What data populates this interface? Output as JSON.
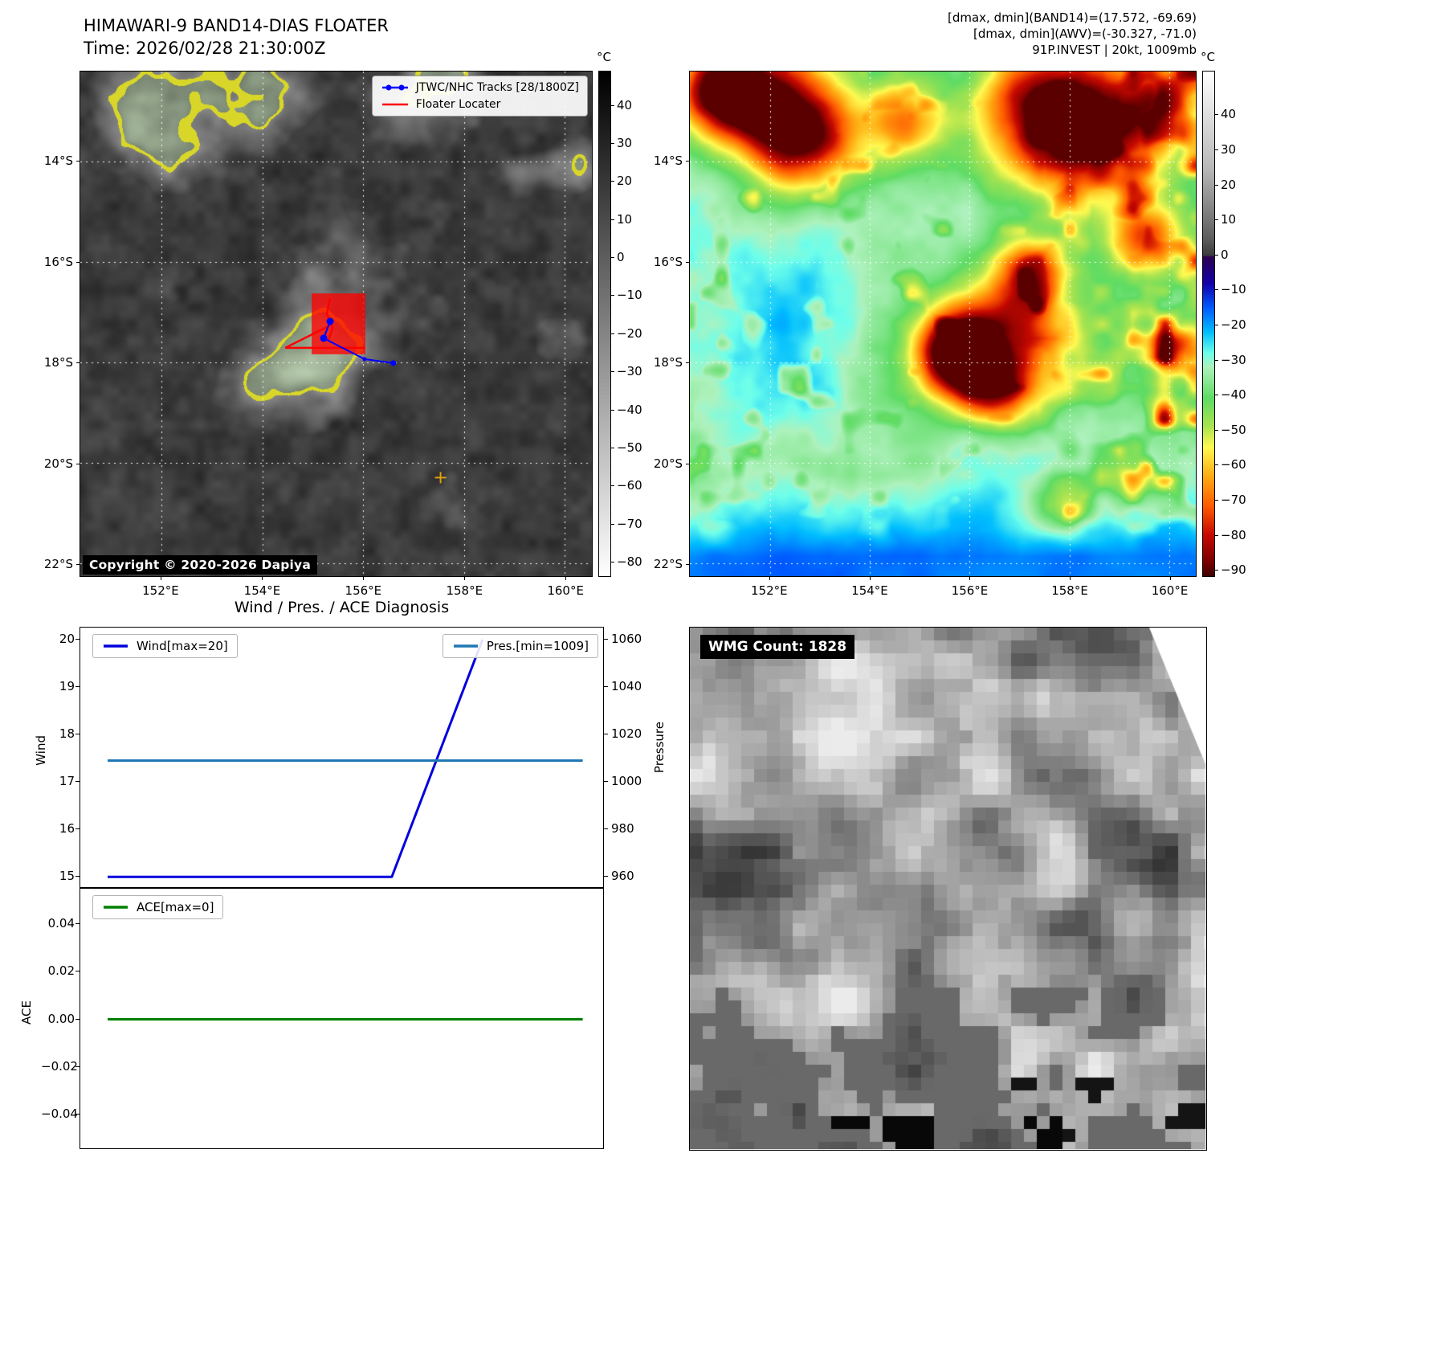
{
  "panel_band14": {
    "title": "HIMAWARI-9 BAND14-DIAS FLOATER",
    "time_line": "Time: 2026/02/28 21:30:00Z",
    "legend": {
      "track_label": "JTWC/NHC Tracks [28/1800Z]",
      "track_color": "#0000ff",
      "floater_label": "Floater Locater",
      "floater_color": "#ff0000"
    },
    "copyright": "Copyright © 2020-2026 Dapiya",
    "lat_ticks": [
      "14°S",
      "16°S",
      "18°S",
      "20°S",
      "22°S"
    ],
    "lon_ticks": [
      "152°E",
      "154°E",
      "156°E",
      "158°E",
      "160°E"
    ],
    "colorbar": {
      "unit": "°C",
      "ticks": [
        40,
        30,
        20,
        10,
        0,
        -10,
        -20,
        -30,
        -40,
        -50,
        -60,
        -70,
        -80
      ],
      "vmax": 49,
      "vmin": -84
    }
  },
  "panel_awv": {
    "header_lines": [
      "[dmax, dmin](BAND14)=(17.572, -69.69)",
      "[dmax, dmin](AWV)=(-30.327, -71.0)",
      "91P.INVEST | 20kt, 1009mb"
    ],
    "lat_ticks": [
      "14°S",
      "16°S",
      "18°S",
      "20°S",
      "22°S"
    ],
    "lon_ticks": [
      "152°E",
      "154°E",
      "156°E",
      "158°E",
      "160°E"
    ],
    "colorbar": {
      "unit": "°C",
      "ticks": [
        40,
        30,
        20,
        10,
        0,
        -10,
        -20,
        -30,
        -40,
        -50,
        -60,
        -70,
        -80,
        -90
      ],
      "vmax": 52.5,
      "vmin": -92
    }
  },
  "wmg_panel": {
    "count_label": "WMG Count: 1828"
  },
  "chart_data": [
    {
      "type": "line",
      "name": "wind_pressure",
      "title": "Wind / Pres. / ACE Diagnosis",
      "legend_position": [
        "upper left",
        "upper right"
      ],
      "grid": false,
      "series": [
        {
          "name": "Wind[max=20]",
          "color": "#0000dd",
          "axis": "left",
          "x_frac": [
            0.052,
            0.594,
            0.767
          ],
          "y": [
            15,
            15,
            20
          ]
        },
        {
          "name": "Pres.[min=1009]",
          "color": "#1f77b4",
          "axis": "right",
          "x_frac": [
            0.052,
            0.958
          ],
          "y": [
            1009,
            1009
          ]
        }
      ],
      "axes": {
        "left": {
          "label": "Wind",
          "ticks": [
            20,
            19,
            18,
            17,
            16,
            15
          ],
          "min": 14.75,
          "max": 20.25
        },
        "right": {
          "label": "Pressure",
          "ticks": [
            1060,
            1040,
            1020,
            1000,
            980,
            960
          ],
          "min": 955,
          "max": 1065
        }
      }
    },
    {
      "type": "line",
      "name": "ace",
      "legend_position": [
        "upper left"
      ],
      "grid": false,
      "series": [
        {
          "name": "ACE[max=0]",
          "color": "#008000",
          "axis": "left",
          "x_frac": [
            0.052,
            0.958
          ],
          "y": [
            0,
            0
          ]
        }
      ],
      "axes": {
        "left": {
          "label": "ACE",
          "ticks": [
            "0.04",
            "0.02",
            "0.00",
            "-0.02",
            "-0.04"
          ],
          "tick_values": [
            0.04,
            0.02,
            0,
            -0.02,
            -0.04
          ],
          "min": -0.055,
          "max": 0.055
        }
      }
    }
  ]
}
